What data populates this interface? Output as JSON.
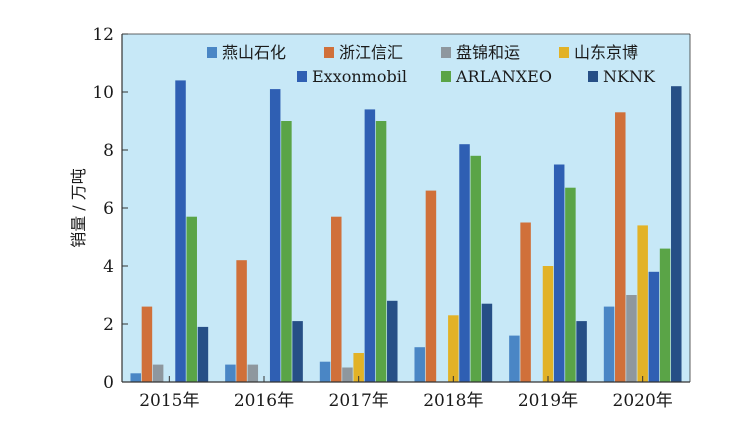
{
  "chart_data": {
    "type": "bar",
    "title": "",
    "xlabel": "",
    "ylabel": "销量 / 万吨",
    "ylim": [
      0,
      12
    ],
    "yticks": [
      0,
      2,
      4,
      6,
      8,
      10,
      12
    ],
    "grid": false,
    "legend_position": "top-right",
    "categories": [
      "2015年",
      "2016年",
      "2017年",
      "2018年",
      "2019年",
      "2020年"
    ],
    "series": [
      {
        "name": "燕山石化",
        "color": "#4a86c5",
        "values": [
          0.3,
          0.6,
          0.7,
          1.2,
          1.6,
          2.6
        ]
      },
      {
        "name": "浙江信汇",
        "color": "#d0703a",
        "values": [
          2.6,
          4.2,
          5.7,
          6.6,
          5.5,
          9.3
        ]
      },
      {
        "name": "盘锦和运",
        "color": "#8e979e",
        "values": [
          0.6,
          0.6,
          0.5,
          0,
          0,
          3.0
        ]
      },
      {
        "name": "山东京博",
        "color": "#e2b227",
        "values": [
          0,
          0,
          1.0,
          2.3,
          4.0,
          5.4
        ]
      },
      {
        "name": "Exxonmobil",
        "color": "#2f5fb3",
        "values": [
          10.4,
          10.1,
          9.4,
          8.2,
          7.5,
          3.8
        ]
      },
      {
        "name": "ARLANXEO",
        "color": "#5aa447",
        "values": [
          5.7,
          9.0,
          9.0,
          7.8,
          6.7,
          4.6
        ]
      },
      {
        "name": "NKNK",
        "color": "#264f86",
        "values": [
          1.9,
          2.1,
          2.8,
          2.7,
          2.1,
          10.2
        ]
      }
    ],
    "colors": {
      "plot_background": "#c7e8f7",
      "axis": "#333333"
    }
  }
}
